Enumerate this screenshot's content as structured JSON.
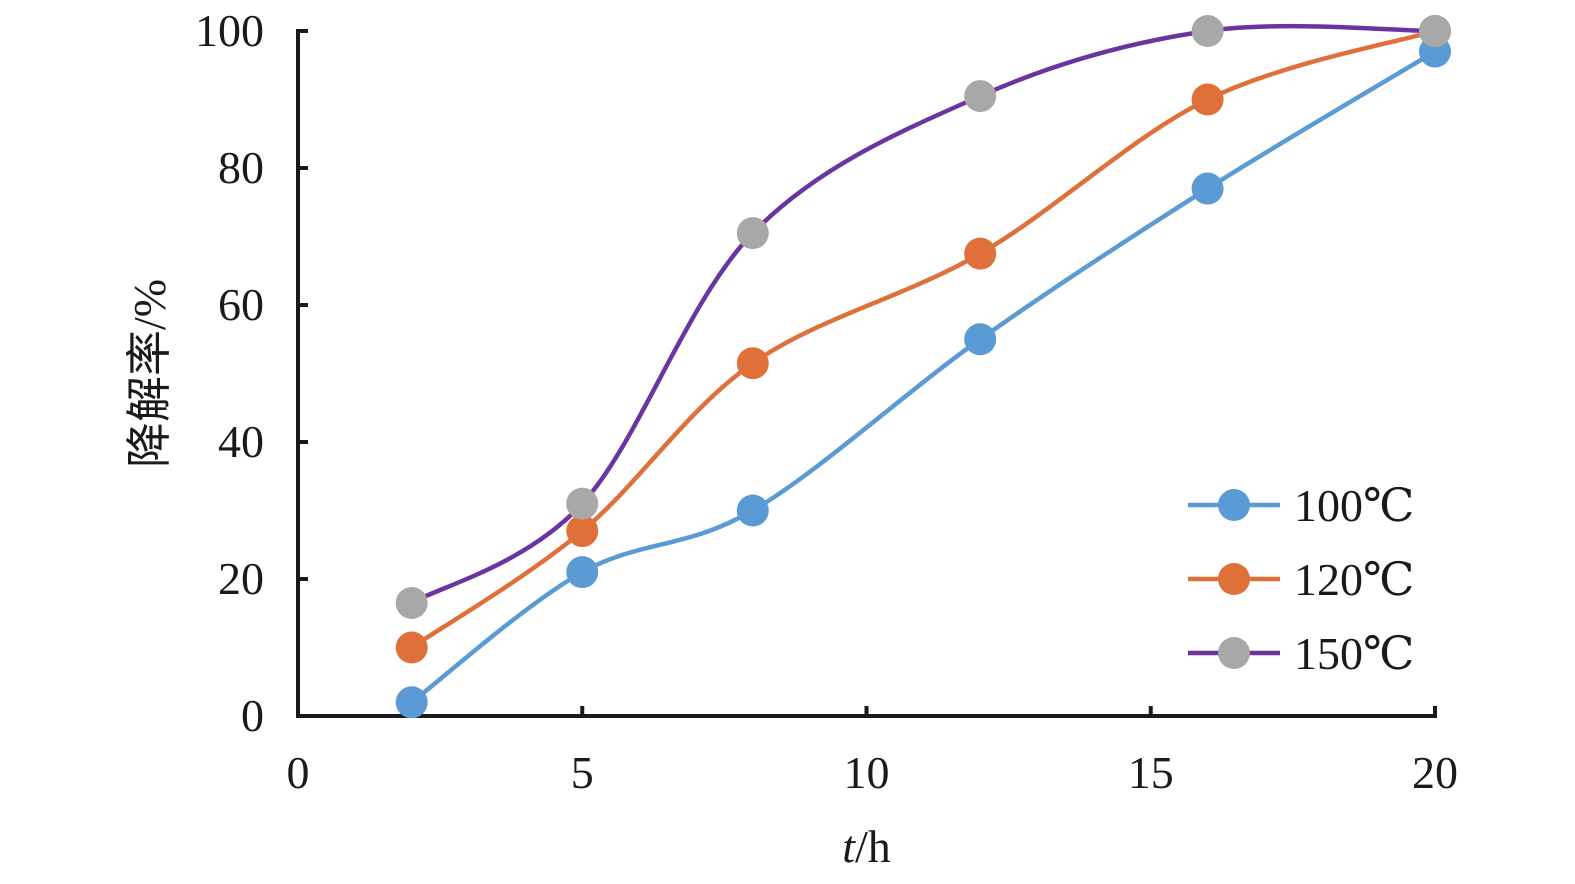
{
  "chart_data": {
    "type": "line",
    "title": "",
    "xlabel_italic": "t",
    "xlabel_unit": "/h",
    "ylabel": "降解率/%",
    "xlim": [
      0,
      20
    ],
    "ylim": [
      0,
      100
    ],
    "xticks": [
      0,
      5,
      10,
      15,
      20
    ],
    "yticks": [
      0,
      20,
      40,
      60,
      80,
      100
    ],
    "grid": false,
    "legend_position": "bottom-right",
    "x": [
      2,
      5,
      8,
      12,
      16,
      20
    ],
    "series": [
      {
        "name": "100℃",
        "line_color": "#5B9BD5",
        "marker_color": "#5B9BD5",
        "values": [
          2,
          21,
          30,
          55,
          77,
          97
        ]
      },
      {
        "name": "120℃",
        "line_color": "#E0703A",
        "marker_color": "#E0703A",
        "values": [
          10,
          27,
          51.5,
          67.5,
          90,
          100
        ]
      },
      {
        "name": "150℃",
        "line_color": "#6A35A0",
        "marker_color": "#A8A8A8",
        "values": [
          16.5,
          31,
          70.5,
          90.5,
          100,
          100
        ]
      }
    ]
  }
}
